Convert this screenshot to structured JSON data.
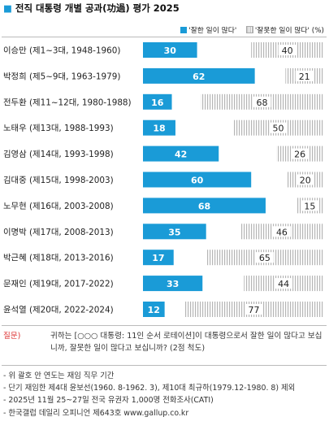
{
  "header": {
    "bullet": "■",
    "title": "전직 대통령 개별 공과(功過) 평가 2025"
  },
  "legend": {
    "good_label": "'잘한 일이 많다'",
    "bad_label": "'잘못한 일이 많다'",
    "unit": "(%)"
  },
  "colors": {
    "good": "#1a9bd7",
    "bad_hatch": "#b5b5b5"
  },
  "chart_data": {
    "type": "bar",
    "orientation": "horizontal",
    "stacked": true,
    "xlim": [
      0,
      100
    ],
    "categories": [
      "이승만 (제1~3대, 1948-1960)",
      "박정희 (제5~9대, 1963-1979)",
      "전두환 (제11~12대, 1980-1988)",
      "노태우 (제13대, 1988-1993)",
      "김영삼 (제14대, 1993-1998)",
      "김대중 (제15대, 1998-2003)",
      "노무현 (제16대, 2003-2008)",
      "이명박 (제17대, 2008-2013)",
      "박근혜 (제18대, 2013-2016)",
      "문재인 (제19대, 2017-2022)",
      "윤석열 (제20대, 2022-2024)"
    ],
    "series": [
      {
        "name": "'잘한 일이 많다'",
        "values": [
          30,
          62,
          16,
          18,
          42,
          60,
          68,
          35,
          17,
          33,
          12
        ]
      },
      {
        "name": "'잘못한 일이 많다'",
        "values": [
          40,
          21,
          68,
          50,
          26,
          20,
          15,
          46,
          65,
          44,
          77
        ]
      }
    ]
  },
  "question": {
    "label": "질문)",
    "text": "귀하는 [○○○ 대통령: 11인 순서 로테이션]이 대통령으로서 잘한 일이 많다고 보십니까, 잘못한 일이 많다고 보십니까? (2점 척도)"
  },
  "footnotes": [
    "- 위 괄호 안 연도는 재임 직무 기간",
    "- 단기 재임한 제4대 윤보선(1960. 8-1962. 3), 제10대 최규하(1979.12-1980. 8) 제외",
    "- 2025년 11월 25~27일 전국 유권자 1,000명 전화조사(CATI)",
    "- 한국갤럽 데일리 오피니언 제643호 www.gallup.co.kr"
  ]
}
